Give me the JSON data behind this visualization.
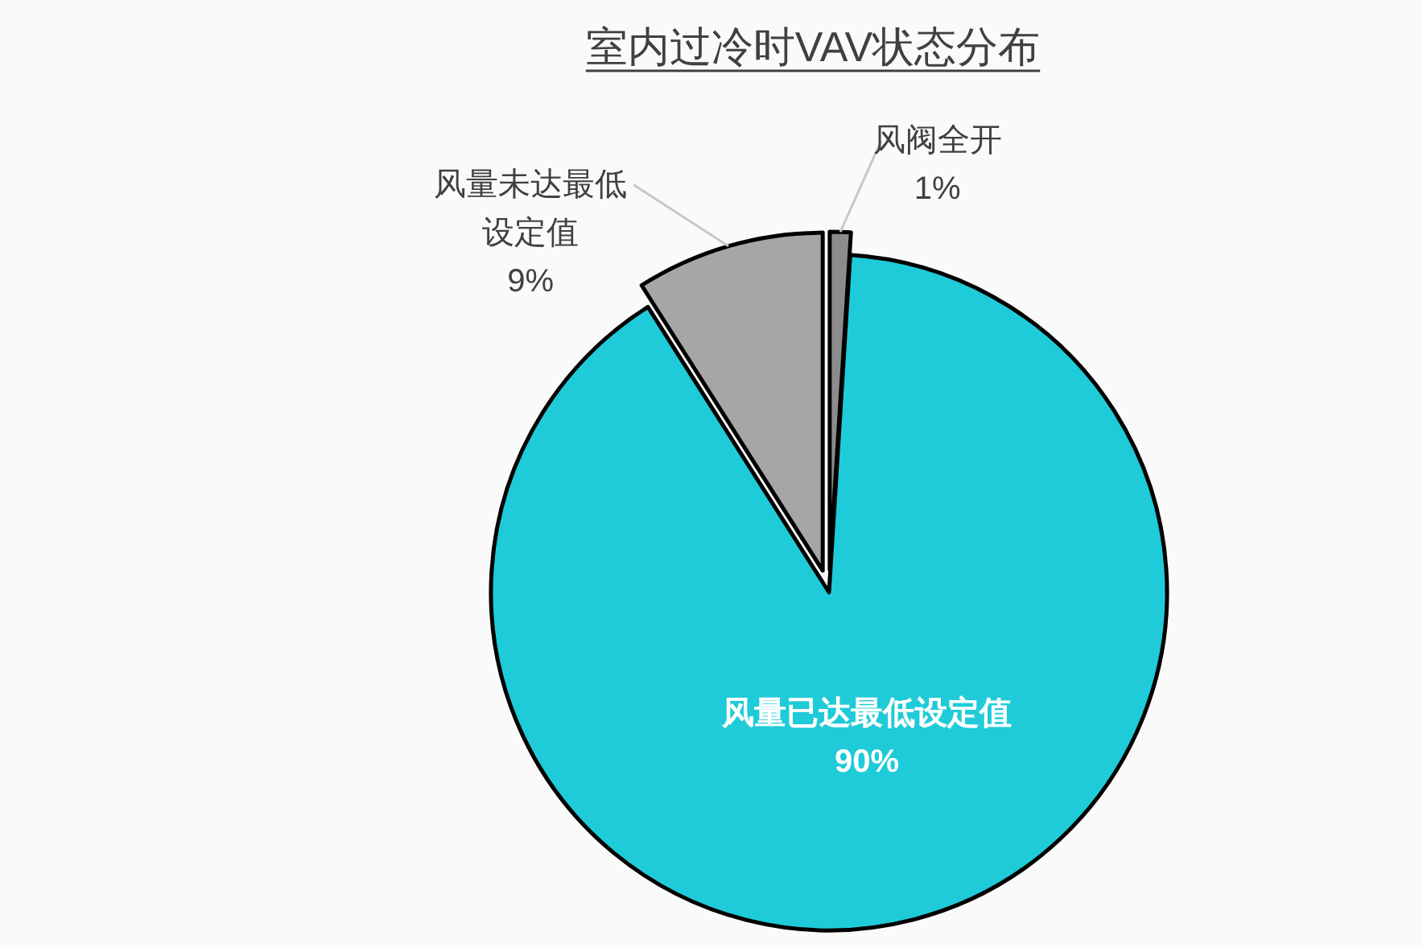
{
  "chart_data": {
    "type": "pie",
    "title": "室内过冷时VAV状态分布",
    "categories": [
      "风阀全开",
      "风量已达最低设定值",
      "风量未达最低设定值"
    ],
    "values": [
      1,
      90,
      9
    ],
    "colors": [
      "#8c8c8c",
      "#1fcbd8",
      "#a6a6a6"
    ],
    "value_labels": [
      "1%",
      "90%",
      "9%"
    ]
  }
}
